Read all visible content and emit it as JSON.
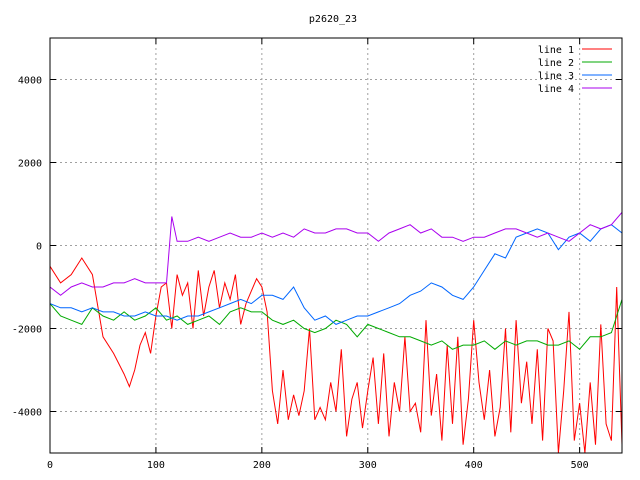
{
  "chart_data": {
    "type": "line",
    "title": "p2620_23",
    "xlabel": "",
    "ylabel": "",
    "xlim": [
      0,
      540
    ],
    "ylim": [
      -5000,
      5000
    ],
    "xticks": [
      0,
      100,
      200,
      300,
      400,
      500
    ],
    "yticks": [
      -4000,
      -2000,
      0,
      2000,
      4000
    ],
    "grid": true,
    "legend_position": "top-right",
    "series": [
      {
        "name": "line 1",
        "color": "#ff0000",
        "x": [
          0,
          10,
          20,
          30,
          40,
          50,
          60,
          70,
          75,
          80,
          85,
          90,
          95,
          100,
          105,
          110,
          115,
          120,
          125,
          130,
          135,
          140,
          145,
          150,
          155,
          160,
          165,
          170,
          175,
          180,
          185,
          190,
          195,
          200,
          205,
          210,
          215,
          220,
          225,
          230,
          235,
          240,
          245,
          250,
          255,
          260,
          265,
          270,
          275,
          280,
          285,
          290,
          295,
          300,
          305,
          310,
          315,
          320,
          325,
          330,
          335,
          340,
          345,
          350,
          355,
          360,
          365,
          370,
          375,
          380,
          385,
          390,
          395,
          400,
          405,
          410,
          415,
          420,
          425,
          430,
          435,
          440,
          445,
          450,
          455,
          460,
          465,
          470,
          475,
          480,
          485,
          490,
          495,
          500,
          505,
          510,
          515,
          520,
          525,
          530,
          535,
          540
        ],
        "y": [
          -500,
          -900,
          -700,
          -300,
          -700,
          -2200,
          -2600,
          -3100,
          -3400,
          -3000,
          -2400,
          -2100,
          -2600,
          -1700,
          -1000,
          -900,
          -2000,
          -700,
          -1200,
          -900,
          -2000,
          -600,
          -1700,
          -1000,
          -600,
          -1500,
          -900,
          -1300,
          -700,
          -1900,
          -1400,
          -1100,
          -800,
          -1000,
          -1600,
          -3500,
          -4300,
          -3000,
          -4200,
          -3600,
          -4100,
          -3500,
          -2000,
          -4200,
          -3900,
          -4200,
          -3300,
          -4000,
          -2500,
          -4600,
          -3700,
          -3300,
          -4400,
          -3500,
          -2700,
          -4300,
          -2600,
          -4600,
          -3300,
          -4000,
          -2200,
          -4000,
          -3800,
          -4500,
          -1800,
          -4100,
          -3100,
          -4700,
          -2400,
          -4300,
          -2200,
          -4800,
          -3700,
          -1800,
          -3300,
          -4200,
          -3000,
          -4600,
          -3900,
          -2000,
          -4500,
          -1800,
          -3800,
          -2800,
          -4300,
          -2500,
          -4700,
          -2000,
          -2300,
          -5000,
          -3500,
          -1600,
          -4700,
          -3800,
          -5000,
          -3300,
          -4800,
          -1900,
          -4300,
          -4700,
          -1000,
          -4800
        ]
      },
      {
        "name": "line 2",
        "color": "#00aa00",
        "x": [
          0,
          10,
          20,
          30,
          40,
          50,
          60,
          70,
          80,
          90,
          100,
          110,
          120,
          130,
          140,
          150,
          160,
          170,
          180,
          190,
          200,
          210,
          220,
          230,
          240,
          250,
          260,
          270,
          280,
          290,
          300,
          310,
          320,
          330,
          340,
          350,
          360,
          370,
          380,
          390,
          400,
          410,
          420,
          430,
          440,
          450,
          460,
          470,
          480,
          490,
          500,
          510,
          520,
          530,
          540
        ],
        "y": [
          -1400,
          -1700,
          -1800,
          -1900,
          -1500,
          -1700,
          -1800,
          -1600,
          -1800,
          -1700,
          -1500,
          -1800,
          -1700,
          -1900,
          -1800,
          -1700,
          -1900,
          -1600,
          -1500,
          -1600,
          -1600,
          -1800,
          -1900,
          -1800,
          -2000,
          -2100,
          -2000,
          -1800,
          -1900,
          -2200,
          -1900,
          -2000,
          -2100,
          -2200,
          -2200,
          -2300,
          -2400,
          -2300,
          -2500,
          -2400,
          -2400,
          -2300,
          -2500,
          -2300,
          -2400,
          -2300,
          -2300,
          -2400,
          -2400,
          -2300,
          -2500,
          -2200,
          -2200,
          -2100,
          -1300
        ]
      },
      {
        "name": "line 3",
        "color": "#0066ff",
        "x": [
          0,
          10,
          20,
          30,
          40,
          50,
          60,
          70,
          80,
          90,
          100,
          110,
          120,
          130,
          140,
          150,
          160,
          170,
          180,
          190,
          200,
          210,
          220,
          230,
          240,
          250,
          260,
          270,
          280,
          290,
          300,
          310,
          320,
          330,
          340,
          350,
          360,
          370,
          380,
          390,
          400,
          410,
          420,
          430,
          440,
          450,
          460,
          470,
          480,
          490,
          500,
          510,
          520,
          530,
          540
        ],
        "y": [
          -1400,
          -1500,
          -1500,
          -1600,
          -1500,
          -1600,
          -1600,
          -1700,
          -1700,
          -1600,
          -1700,
          -1700,
          -1800,
          -1700,
          -1700,
          -1600,
          -1500,
          -1400,
          -1300,
          -1400,
          -1200,
          -1200,
          -1300,
          -1000,
          -1500,
          -1800,
          -1700,
          -1900,
          -1800,
          -1700,
          -1700,
          -1600,
          -1500,
          -1400,
          -1200,
          -1100,
          -900,
          -1000,
          -1200,
          -1300,
          -1000,
          -600,
          -200,
          -300,
          200,
          300,
          400,
          300,
          -100,
          200,
          300,
          100,
          400,
          500,
          300
        ]
      },
      {
        "name": "line 4",
        "color": "#aa00ee",
        "x": [
          0,
          10,
          20,
          30,
          40,
          50,
          60,
          70,
          80,
          90,
          100,
          110,
          115,
          120,
          130,
          140,
          150,
          160,
          170,
          180,
          190,
          200,
          210,
          220,
          230,
          240,
          250,
          260,
          270,
          280,
          290,
          300,
          310,
          320,
          330,
          340,
          350,
          360,
          370,
          380,
          390,
          400,
          410,
          420,
          430,
          440,
          450,
          460,
          470,
          480,
          490,
          500,
          510,
          520,
          530,
          540
        ],
        "y": [
          -1000,
          -1200,
          -1000,
          -900,
          -1000,
          -1000,
          -900,
          -900,
          -800,
          -900,
          -900,
          -900,
          700,
          100,
          100,
          200,
          100,
          200,
          300,
          200,
          200,
          300,
          200,
          300,
          200,
          400,
          300,
          300,
          400,
          400,
          300,
          300,
          100,
          300,
          400,
          500,
          300,
          400,
          200,
          200,
          100,
          200,
          200,
          300,
          400,
          400,
          300,
          200,
          300,
          200,
          100,
          300,
          500,
          400,
          500,
          800
        ]
      }
    ]
  }
}
